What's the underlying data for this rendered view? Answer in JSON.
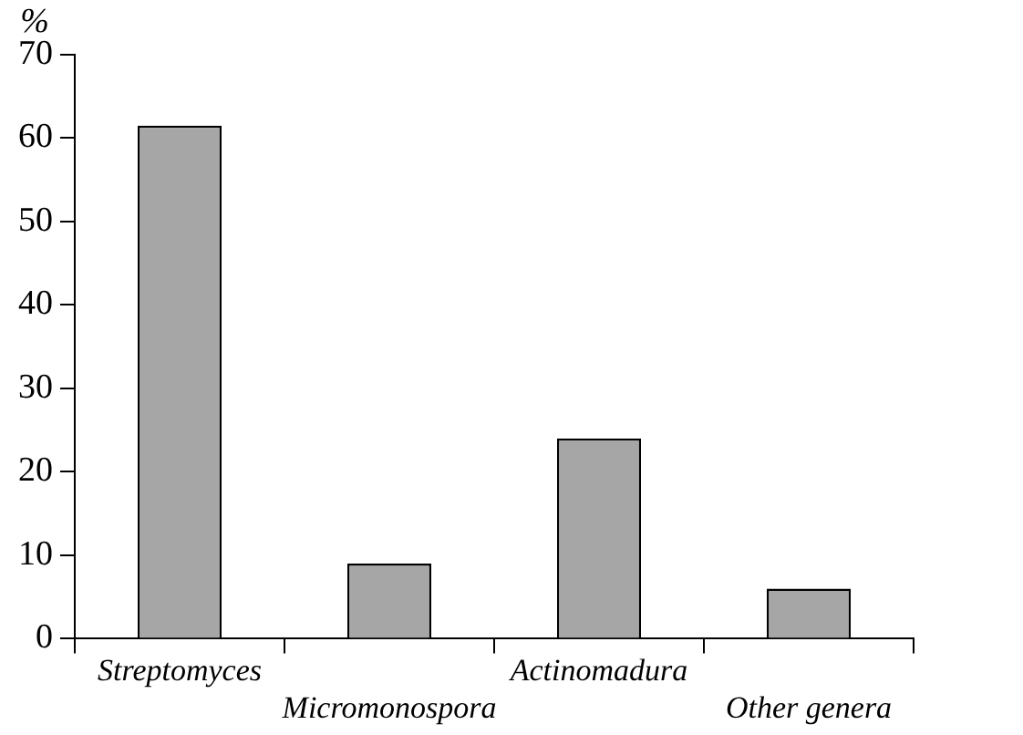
{
  "chart_data": {
    "type": "bar",
    "ylabel": "%",
    "categories": [
      "Streptomyces",
      "Micromonospora",
      "Actinomadura",
      "Other genera"
    ],
    "values": [
      61.5,
      9,
      24,
      6
    ],
    "color": "#a6a6a6",
    "ylim": [
      0,
      70
    ],
    "yticks": [
      0,
      10,
      20,
      30,
      40,
      50,
      60,
      70
    ],
    "grid": false
  }
}
